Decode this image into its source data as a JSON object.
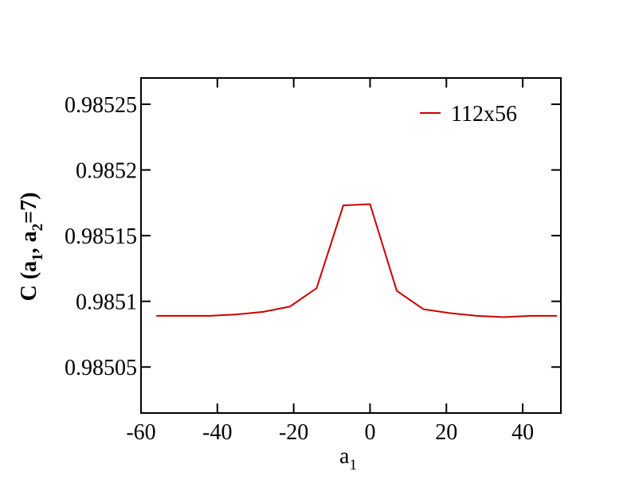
{
  "chart_data": {
    "type": "line",
    "xlabel_parts": [
      "a",
      "1"
    ],
    "ylabel_parts": [
      "C (a",
      "1",
      ", a",
      "2",
      "=7)"
    ],
    "x": [
      -56,
      -49,
      -42,
      -35,
      -28,
      -21,
      -14,
      -7,
      0,
      7,
      14,
      21,
      28,
      35,
      42,
      49
    ],
    "series": [
      {
        "name": "112x56",
        "color": "#cc0000",
        "values": [
          0.985089,
          0.985089,
          0.985089,
          0.98509,
          0.985092,
          0.985096,
          0.98511,
          0.985173,
          0.985174,
          0.985108,
          0.985094,
          0.985091,
          0.985089,
          0.985088,
          0.985089,
          0.985089
        ]
      }
    ],
    "xlim": [
      -60,
      50
    ],
    "xticks": [
      -60,
      -40,
      -20,
      0,
      20,
      40
    ],
    "ylim": [
      0.985015,
      0.98527
    ],
    "yticks": [
      0.98505,
      0.9851,
      0.98515,
      0.9852,
      0.98525
    ],
    "legend": "upper right",
    "grid": false
  }
}
